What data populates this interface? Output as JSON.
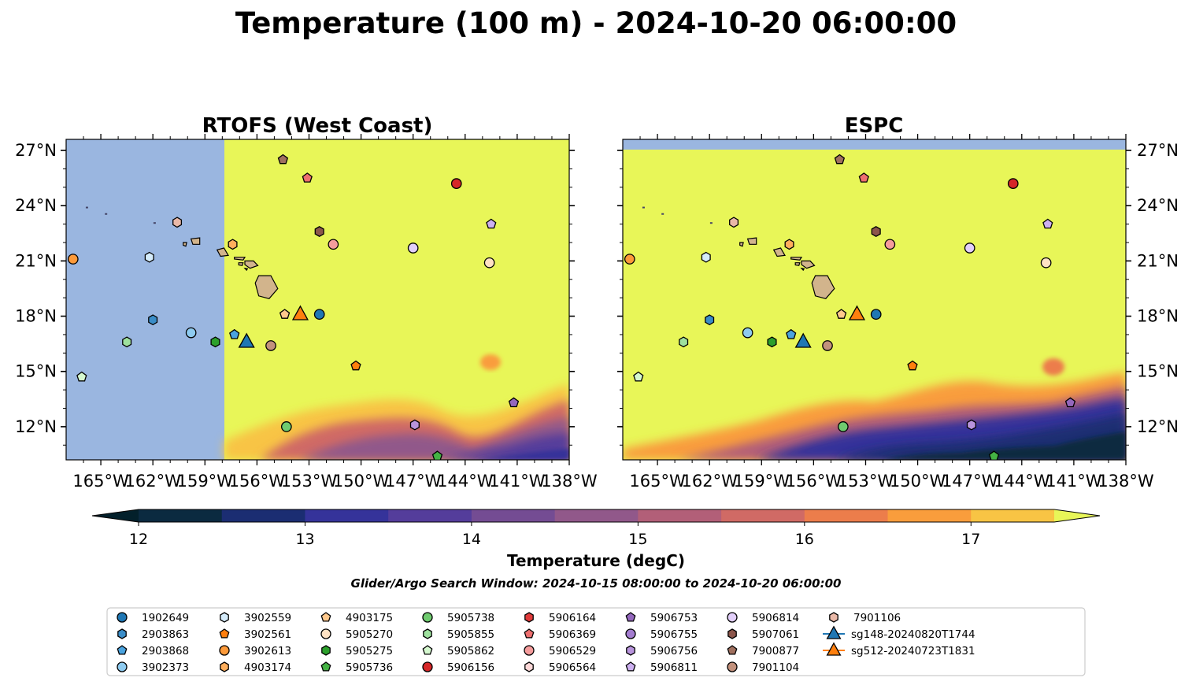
{
  "title": "Temperature (100 m) - 2024-10-20 06:00:00",
  "panels": [
    {
      "title": "RTOFS (West Coast)"
    },
    {
      "title": "ESPC"
    }
  ],
  "map_axes": {
    "lon_range": [
      -167,
      -138
    ],
    "lat_range": [
      10.2,
      27.6
    ],
    "lon_ticks": [
      -165,
      -162,
      -159,
      -156,
      -153,
      -150,
      -147,
      -144,
      -141,
      -138
    ],
    "lon_tick_labels": [
      "165°W",
      "162°W",
      "159°W",
      "156°W",
      "153°W",
      "150°W",
      "147°W",
      "144°W",
      "141°W",
      "138°W"
    ],
    "lat_ticks": [
      12,
      15,
      18,
      21,
      24,
      27
    ],
    "lat_tick_labels": [
      "12°N",
      "15°N",
      "18°N",
      "21°N",
      "24°N",
      "27°N"
    ]
  },
  "colorbar": {
    "label": "Temperature (degC)",
    "min": 12,
    "max": 17.5,
    "step": 0.5,
    "ticks": [
      12,
      13,
      14,
      15,
      16,
      17
    ],
    "tick_labels": [
      "12",
      "13",
      "14",
      "15",
      "16",
      "17"
    ],
    "colors": [
      "#0b2a40",
      "#1b2d72",
      "#35339a",
      "#543d9b",
      "#744c93",
      "#91588a",
      "#b25f78",
      "#d06a65",
      "#ec7d4b",
      "#f99d3c",
      "#f8c444"
    ],
    "under_color": "#03202b",
    "over_color": "#e8f658"
  },
  "subtitle": "Glider/Argo Search Window: 2024-10-15 08:00:00 to 2024-10-20 06:00:00",
  "colors": {
    "land": "#d2b48c",
    "nodata": "#9ab6e0",
    "warm": "#e8f658"
  },
  "legend": [
    {
      "label": "1902649",
      "color": "#1f77b4",
      "marker": "circle"
    },
    {
      "label": "2903863",
      "color": "#3a8dc8",
      "marker": "hexagon"
    },
    {
      "label": "2903868",
      "color": "#4aa3df",
      "marker": "pentagon"
    },
    {
      "label": "3902373",
      "color": "#8ecbf0",
      "marker": "circle"
    },
    {
      "label": "3902559",
      "color": "#d5ecfb",
      "marker": "hexagon"
    },
    {
      "label": "3902561",
      "color": "#ff7f0e",
      "marker": "pentagon"
    },
    {
      "label": "3902613",
      "color": "#fd9a3a",
      "marker": "circle"
    },
    {
      "label": "4903174",
      "color": "#ffae5c",
      "marker": "hexagon"
    },
    {
      "label": "4903175",
      "color": "#ffc88c",
      "marker": "pentagon"
    },
    {
      "label": "5905270",
      "color": "#ffe2c4",
      "marker": "circle"
    },
    {
      "label": "5905275",
      "color": "#2ca02c",
      "marker": "hexagon"
    },
    {
      "label": "5905736",
      "color": "#44b244",
      "marker": "pentagon"
    },
    {
      "label": "5905738",
      "color": "#6fcb6f",
      "marker": "circle"
    },
    {
      "label": "5905855",
      "color": "#9ee19e",
      "marker": "hexagon"
    },
    {
      "label": "5905862",
      "color": "#d5f8cf",
      "marker": "pentagon"
    },
    {
      "label": "5906156",
      "color": "#d62728",
      "marker": "circle"
    },
    {
      "label": "5906164",
      "color": "#e03a3a",
      "marker": "hexagon"
    },
    {
      "label": "5906369",
      "color": "#ee6f6f",
      "marker": "pentagon"
    },
    {
      "label": "5906529",
      "color": "#f59c9c",
      "marker": "circle"
    },
    {
      "label": "5906564",
      "color": "#fdd8d8",
      "marker": "hexagon"
    },
    {
      "label": "5906753",
      "color": "#9467bd",
      "marker": "pentagon"
    },
    {
      "label": "5906755",
      "color": "#a47dd0",
      "marker": "circle"
    },
    {
      "label": "5906756",
      "color": "#b894dc",
      "marker": "hexagon"
    },
    {
      "label": "5906811",
      "color": "#cdb0f0",
      "marker": "pentagon"
    },
    {
      "label": "5906814",
      "color": "#e2cffa",
      "marker": "circle"
    },
    {
      "label": "5907061",
      "color": "#8c564b",
      "marker": "hexagon"
    },
    {
      "label": "7900877",
      "color": "#a0705f",
      "marker": "pentagon"
    },
    {
      "label": "7901104",
      "color": "#c2917c",
      "marker": "circle"
    },
    {
      "label": "7901106",
      "color": "#eab9a8",
      "marker": "hexagon"
    },
    {
      "label": "sg148-20240820T1744",
      "color": "#1f77b4",
      "marker": "triangle",
      "line": true
    },
    {
      "label": "sg512-20240723T1831",
      "color": "#ff7f0e",
      "marker": "triangle",
      "line": true
    }
  ],
  "markers": [
    {
      "label": "3902613",
      "lon": -166.6,
      "lat": 21.1
    },
    {
      "label": "5905862",
      "lon": -166.1,
      "lat": 14.7
    },
    {
      "label": "5905855",
      "lon": -163.5,
      "lat": 16.6
    },
    {
      "label": "3902559",
      "lon": -162.2,
      "lat": 21.2
    },
    {
      "label": "2903863",
      "lon": -162.0,
      "lat": 17.8
    },
    {
      "label": "7901106",
      "lon": -160.6,
      "lat": 23.1
    },
    {
      "label": "3902373",
      "lon": -159.8,
      "lat": 17.1
    },
    {
      "label": "5905275",
      "lon": -158.4,
      "lat": 16.6
    },
    {
      "label": "4903174",
      "lon": -157.4,
      "lat": 21.9
    },
    {
      "label": "2903868",
      "lon": -157.3,
      "lat": 17.0
    },
    {
      "label": "sg148-20240820T1744",
      "lon": -156.6,
      "lat": 16.6
    },
    {
      "label": "7901104",
      "lon": -155.2,
      "lat": 16.4
    },
    {
      "label": "7900877",
      "lon": -154.5,
      "lat": 26.5
    },
    {
      "label": "4903175",
      "lon": -154.4,
      "lat": 18.1
    },
    {
      "label": "5905738",
      "lon": -154.3,
      "lat": 12.0
    },
    {
      "label": "sg512-20240723T1831",
      "lon": -153.5,
      "lat": 18.1
    },
    {
      "label": "5906369",
      "lon": -153.1,
      "lat": 25.5
    },
    {
      "label": "5907061",
      "lon": -152.4,
      "lat": 22.6
    },
    {
      "label": "1902649",
      "lon": -152.4,
      "lat": 18.1
    },
    {
      "label": "5906529",
      "lon": -151.6,
      "lat": 21.9
    },
    {
      "label": "3902561",
      "lon": -150.3,
      "lat": 15.3
    },
    {
      "label": "5906814",
      "lon": -147.0,
      "lat": 21.7
    },
    {
      "label": "5906756",
      "lon": -146.9,
      "lat": 12.1
    },
    {
      "label": "5905736",
      "lon": -145.6,
      "lat": 10.4
    },
    {
      "label": "5906156",
      "lon": -144.5,
      "lat": 25.2
    },
    {
      "label": "5905270",
      "lon": -142.6,
      "lat": 20.9
    },
    {
      "label": "5906811",
      "lon": -142.5,
      "lat": 23.0
    },
    {
      "label": "5906753",
      "lon": -141.2,
      "lat": 13.3
    }
  ],
  "islands": [
    {
      "name": "Hawaii",
      "points": [
        [
          -155.9,
          20.2
        ],
        [
          -155.2,
          20.2
        ],
        [
          -154.8,
          19.5
        ],
        [
          -155.3,
          18.95
        ],
        [
          -155.9,
          19.1
        ],
        [
          -156.1,
          19.8
        ]
      ]
    },
    {
      "name": "Maui",
      "points": [
        [
          -156.7,
          21.0
        ],
        [
          -156.2,
          21.0
        ],
        [
          -155.95,
          20.75
        ],
        [
          -156.4,
          20.6
        ],
        [
          -156.7,
          20.8
        ]
      ]
    },
    {
      "name": "Molokai",
      "points": [
        [
          -157.3,
          21.2
        ],
        [
          -156.7,
          21.2
        ],
        [
          -156.8,
          21.05
        ],
        [
          -157.3,
          21.1
        ]
      ]
    },
    {
      "name": "Lanai",
      "points": [
        [
          -157.05,
          20.9
        ],
        [
          -156.8,
          20.9
        ],
        [
          -156.85,
          20.75
        ],
        [
          -157.05,
          20.78
        ]
      ]
    },
    {
      "name": "Kahoolawe",
      "points": [
        [
          -156.7,
          20.6
        ],
        [
          -156.55,
          20.58
        ],
        [
          -156.6,
          20.5
        ]
      ]
    },
    {
      "name": "Oahu",
      "points": [
        [
          -158.3,
          21.6
        ],
        [
          -157.9,
          21.7
        ],
        [
          -157.65,
          21.3
        ],
        [
          -158.1,
          21.25
        ]
      ]
    },
    {
      "name": "Kauai",
      "points": [
        [
          -159.8,
          22.2
        ],
        [
          -159.3,
          22.25
        ],
        [
          -159.3,
          21.9
        ],
        [
          -159.7,
          21.9
        ]
      ]
    },
    {
      "name": "Niihau",
      "points": [
        [
          -160.25,
          22.0
        ],
        [
          -160.05,
          22.0
        ],
        [
          -160.1,
          21.8
        ],
        [
          -160.25,
          21.85
        ]
      ]
    }
  ]
}
